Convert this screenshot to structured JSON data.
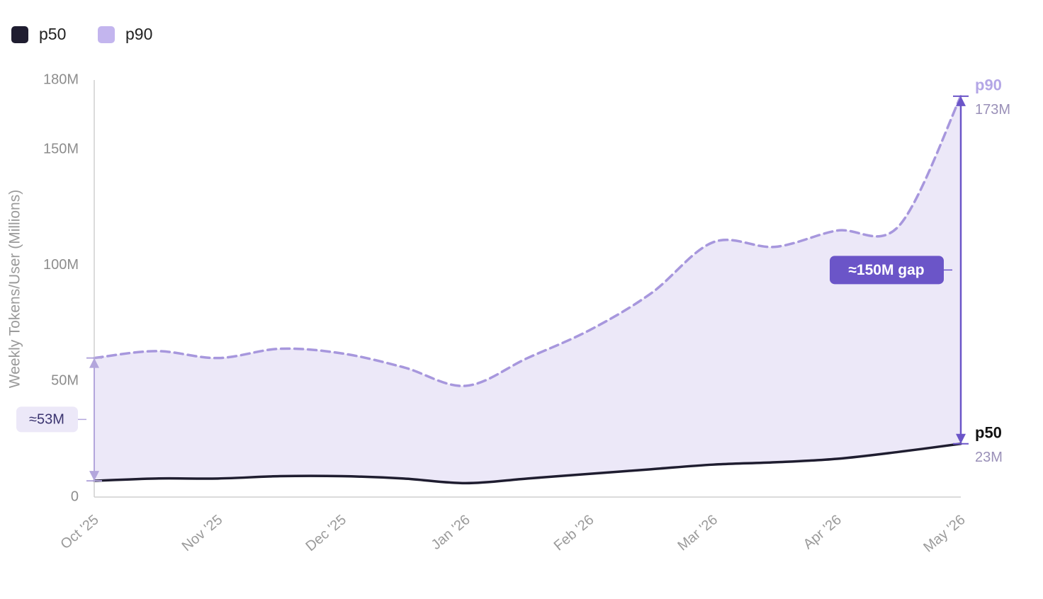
{
  "chart_data": {
    "type": "area-line",
    "y_label": "Weekly Tokens/User (Millions)",
    "categories": [
      "Oct '25",
      null,
      "Nov '25",
      null,
      "Dec '25",
      null,
      "Jan '26",
      null,
      "Feb '26",
      null,
      "Mar '26",
      null,
      "Apr '26",
      null,
      "May '26"
    ],
    "series": [
      {
        "name": "p50",
        "color": "#1f1d30",
        "style": "solid",
        "values": [
          7,
          8,
          8,
          9,
          9,
          8,
          6,
          8,
          10,
          12,
          14,
          15,
          16.5,
          19.5,
          23
        ]
      },
      {
        "name": "p90",
        "color": "#a797dd",
        "style": "dashed",
        "values": [
          60,
          63,
          60,
          64,
          62,
          56,
          48,
          60,
          72,
          88,
          110,
          108,
          115,
          117,
          173
        ]
      }
    ],
    "fill_color": "#ece8f8",
    "ylim": [
      0,
      180
    ],
    "yticks": [
      0,
      {
        "value": 50,
        "label": "50M"
      },
      {
        "value": 100,
        "label": "100M"
      },
      {
        "value": 150,
        "label": "150M"
      },
      {
        "value": 180,
        "label": "180M"
      }
    ],
    "annotations": {
      "start_gap": "≈53M",
      "end_gap": "≈150M gap",
      "p90_end": "173M",
      "p50_end": "23M"
    },
    "legend": "top-left"
  }
}
